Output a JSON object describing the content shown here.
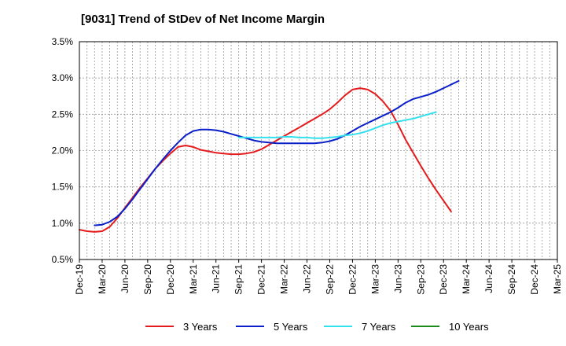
{
  "title": "[9031]  Trend of StDev of Net Income Margin",
  "chart_data": {
    "type": "line",
    "title": "[9031]  Trend of StDev of Net Income Margin",
    "xlabel": "",
    "ylabel": "",
    "x_tick_labels": [
      "Dec-19",
      "Mar-20",
      "Jun-20",
      "Sep-20",
      "Dec-20",
      "Mar-21",
      "Jun-21",
      "Sep-21",
      "Dec-21",
      "Mar-22",
      "Jun-22",
      "Sep-22",
      "Dec-22",
      "Mar-23",
      "Jun-23",
      "Sep-23",
      "Dec-23",
      "Mar-24",
      "Jun-24",
      "Sep-24",
      "Dec-24",
      "Mar-25"
    ],
    "y_tick_labels": [
      "0.5%",
      "1.0%",
      "1.5%",
      "2.0%",
      "2.5%",
      "3.0%",
      "3.5%"
    ],
    "ylim": [
      0.5,
      3.5
    ],
    "grid": true,
    "legend_position": "bottom",
    "series": [
      {
        "name": "3 Years",
        "color": "#e41a1c",
        "start_index": 0,
        "values": [
          0.91,
          0.89,
          0.88,
          0.89,
          0.95,
          1.07,
          1.21,
          1.35,
          1.49,
          1.62,
          1.75,
          1.86,
          1.96,
          2.05,
          2.07,
          2.05,
          2.01,
          1.99,
          1.97,
          1.96,
          1.95,
          1.95,
          1.96,
          1.98,
          2.02,
          2.08,
          2.14,
          2.2,
          2.26,
          2.32,
          2.38,
          2.44,
          2.5,
          2.57,
          2.66,
          2.76,
          2.84,
          2.86,
          2.84,
          2.78,
          2.68,
          2.55,
          2.36,
          2.15,
          1.97,
          1.79,
          1.62,
          1.46,
          1.31,
          1.16
        ]
      },
      {
        "name": "5 Years",
        "color": "#0a1fc8",
        "start_index": 2,
        "values": [
          0.97,
          0.98,
          1.02,
          1.09,
          1.2,
          1.33,
          1.47,
          1.61,
          1.75,
          1.88,
          2.0,
          2.11,
          2.21,
          2.27,
          2.29,
          2.29,
          2.28,
          2.26,
          2.23,
          2.2,
          2.17,
          2.14,
          2.12,
          2.11,
          2.1,
          2.1,
          2.1,
          2.1,
          2.1,
          2.1,
          2.11,
          2.13,
          2.16,
          2.21,
          2.27,
          2.33,
          2.38,
          2.43,
          2.48,
          2.53,
          2.59,
          2.66,
          2.71,
          2.74,
          2.77,
          2.81,
          2.86,
          2.91,
          2.96
        ]
      },
      {
        "name": "7 Years",
        "color": "#33e0ee",
        "start_index": 21,
        "values": [
          2.18,
          2.18,
          2.18,
          2.18,
          2.18,
          2.18,
          2.19,
          2.19,
          2.18,
          2.18,
          2.17,
          2.17,
          2.18,
          2.19,
          2.21,
          2.22,
          2.24,
          2.27,
          2.31,
          2.35,
          2.38,
          2.4,
          2.42,
          2.44,
          2.47,
          2.5,
          2.53
        ]
      },
      {
        "name": "10 Years",
        "color": "#1a8a1a",
        "start_index": 0,
        "values": []
      }
    ]
  }
}
